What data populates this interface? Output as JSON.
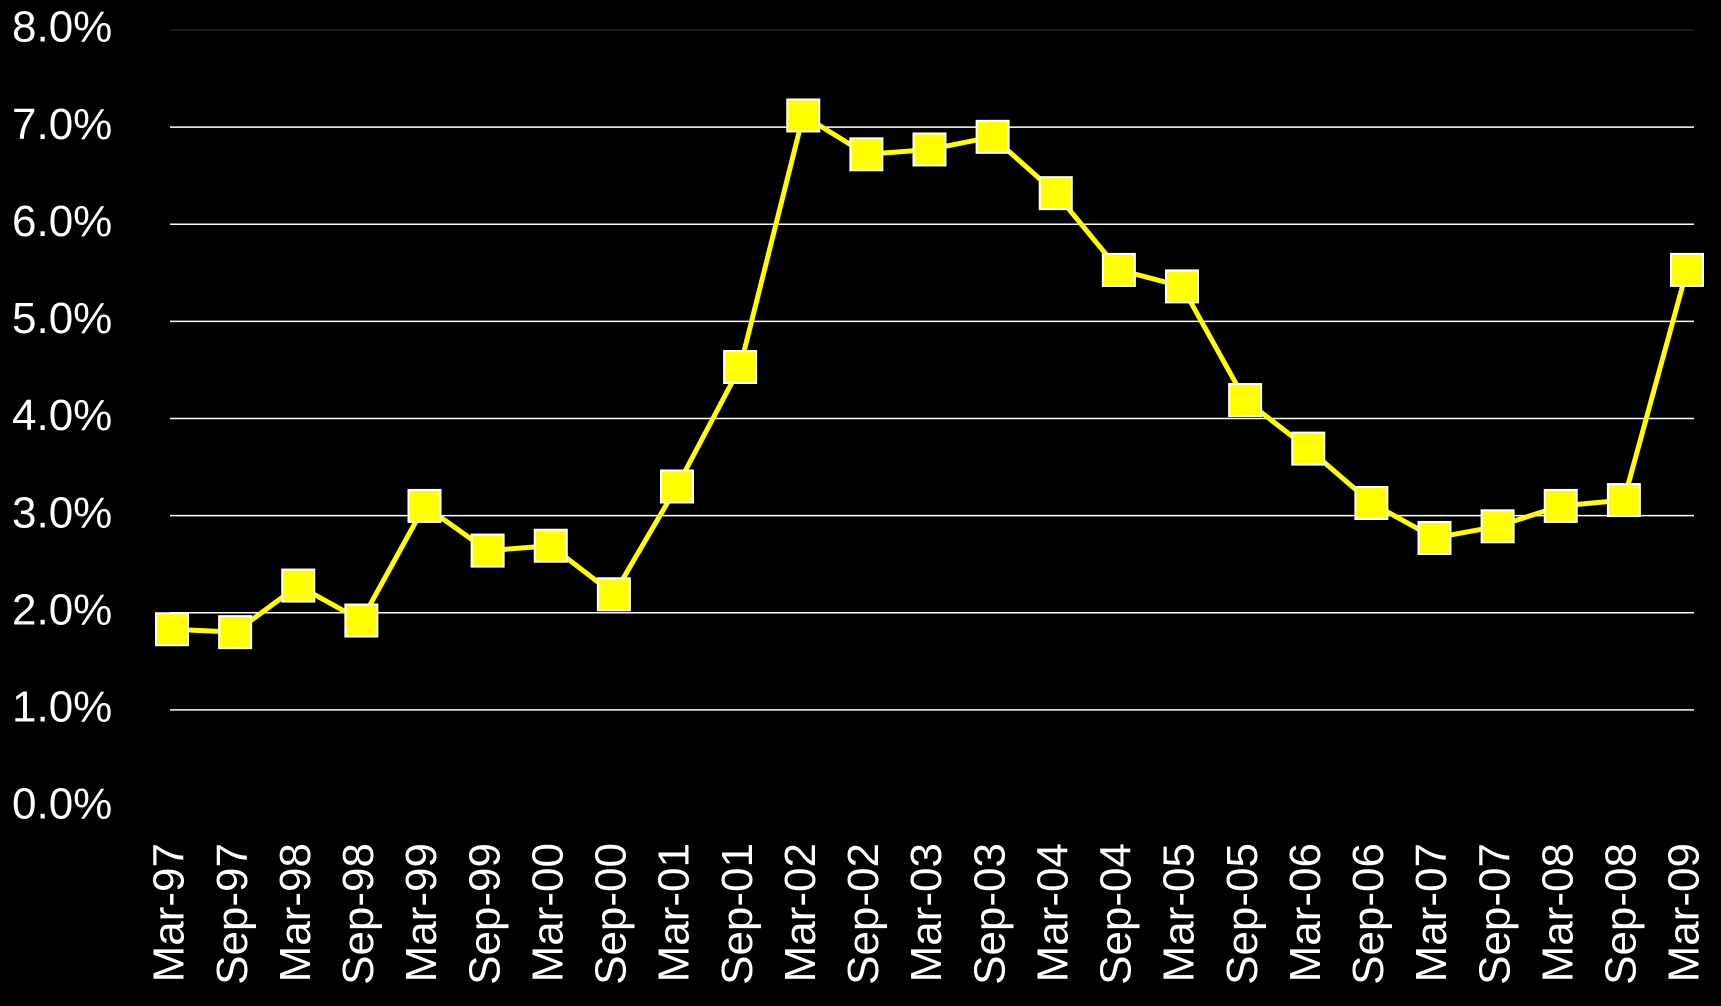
{
  "chart_data": {
    "type": "line",
    "categories": [
      "Mar-97",
      "Sep-97",
      "Mar-98",
      "Sep-98",
      "Mar-99",
      "Sep-99",
      "Mar-00",
      "Sep-00",
      "Mar-01",
      "Sep-01",
      "Mar-02",
      "Sep-02",
      "Mar-03",
      "Sep-03",
      "Mar-04",
      "Sep-04",
      "Mar-05",
      "Sep-05",
      "Mar-06",
      "Sep-06",
      "Mar-07",
      "Sep-07",
      "Mar-08",
      "Sep-08",
      "Mar-09"
    ],
    "series": [
      {
        "color": "#ffff00",
        "values": [
          1.83,
          1.8,
          2.28,
          1.92,
          3.1,
          2.64,
          2.69,
          2.19,
          3.3,
          4.53,
          7.12,
          6.72,
          6.77,
          6.9,
          6.32,
          5.53,
          5.36,
          4.19,
          3.69,
          3.13,
          2.77,
          2.89,
          3.1,
          3.16,
          5.53
        ]
      }
    ],
    "ylim": [
      0,
      8
    ],
    "yticks": [
      {
        "value": 0,
        "label": "0.0%"
      },
      {
        "value": 1,
        "label": "1.0%"
      },
      {
        "value": 2,
        "label": "2.0%"
      },
      {
        "value": 3,
        "label": "3.0%"
      },
      {
        "value": 4,
        "label": "4.0%"
      },
      {
        "value": 5,
        "label": "5.0%"
      },
      {
        "value": 6,
        "label": "6.0%"
      },
      {
        "value": 7,
        "label": "7.0%"
      },
      {
        "value": 8,
        "label": "8.0%"
      }
    ],
    "grid": true
  }
}
